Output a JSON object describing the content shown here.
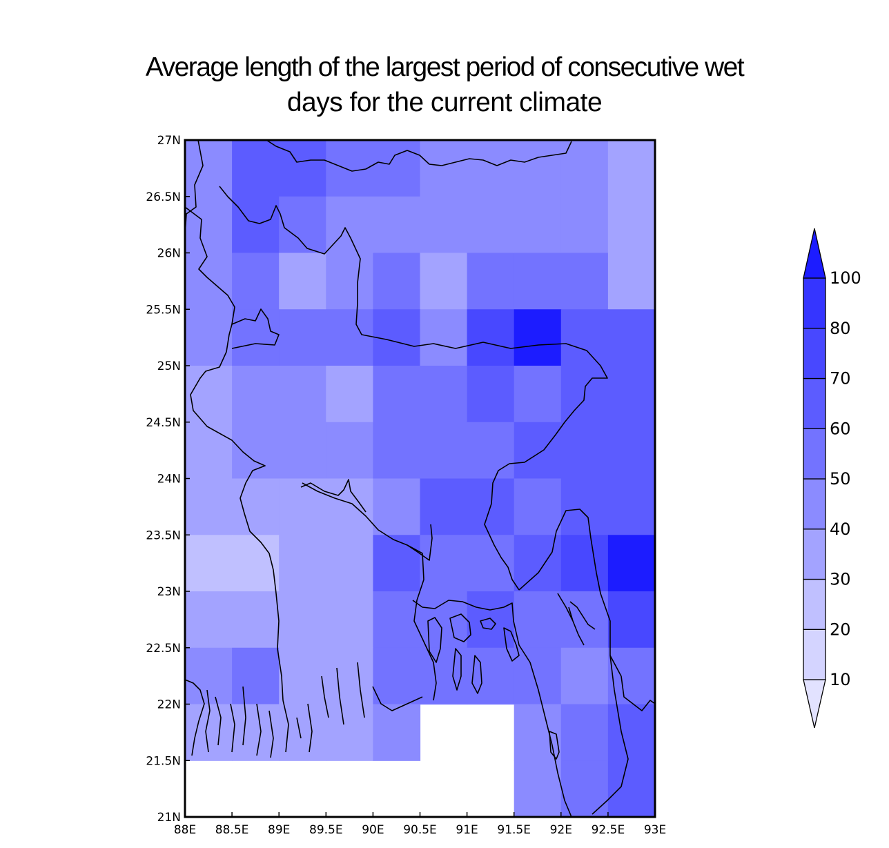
{
  "title_line1": "Average length of the largest period of consecutive wet",
  "title_line2": "days for the current climate",
  "map": {
    "lon_ticks": [
      "88E",
      "88.5E",
      "89E",
      "89.5E",
      "90E",
      "90.5E",
      "91E",
      "91.5E",
      "92E",
      "92.5E",
      "93E"
    ],
    "lat_ticks": [
      "27N",
      "26.5N",
      "26N",
      "25.5N",
      "25N",
      "24.5N",
      "24N",
      "23.5N",
      "23N",
      "22.5N",
      "22N",
      "21.5N",
      "21N"
    ],
    "lon_range": [
      88,
      93
    ],
    "lat_range": [
      21,
      27
    ],
    "grid_resolution_deg": 0.5,
    "value_grid_north_to_south": [
      [
        3,
        5,
        5,
        4,
        4,
        3,
        3,
        3,
        3,
        2
      ],
      [
        3,
        5,
        4,
        3,
        3,
        3,
        3,
        3,
        3,
        2
      ],
      [
        3,
        4,
        2,
        3,
        4,
        2,
        4,
        4,
        4,
        2
      ],
      [
        3,
        4,
        4,
        4,
        5,
        3,
        6,
        8,
        5,
        5
      ],
      [
        2,
        3,
        3,
        2,
        4,
        4,
        5,
        4,
        5,
        5
      ],
      [
        2,
        3,
        3,
        3,
        4,
        4,
        4,
        5,
        5,
        5
      ],
      [
        2,
        2,
        2,
        2,
        3,
        5,
        5,
        4,
        5,
        5
      ],
      [
        1,
        1,
        2,
        2,
        5,
        4,
        4,
        5,
        6,
        8
      ],
      [
        2,
        2,
        2,
        2,
        4,
        4,
        5,
        4,
        4,
        6
      ],
      [
        3,
        4,
        2,
        2,
        4,
        4,
        4,
        4,
        3,
        4
      ],
      [
        2,
        2,
        2,
        2,
        3,
        null,
        null,
        3,
        4,
        5
      ],
      [
        null,
        null,
        null,
        null,
        null,
        null,
        null,
        3,
        4,
        5
      ]
    ],
    "borders_visible": true
  },
  "colorbar": {
    "labels": [
      "10",
      "20",
      "30",
      "40",
      "50",
      "60",
      "70",
      "80",
      "100"
    ],
    "colors": [
      "#d4d4ff",
      "#c0c0ff",
      "#a3a3ff",
      "#8b8bff",
      "#7373ff",
      "#5c5cff",
      "#4848ff",
      "#3535ff",
      "#1c1cff"
    ],
    "extend": "both"
  }
}
